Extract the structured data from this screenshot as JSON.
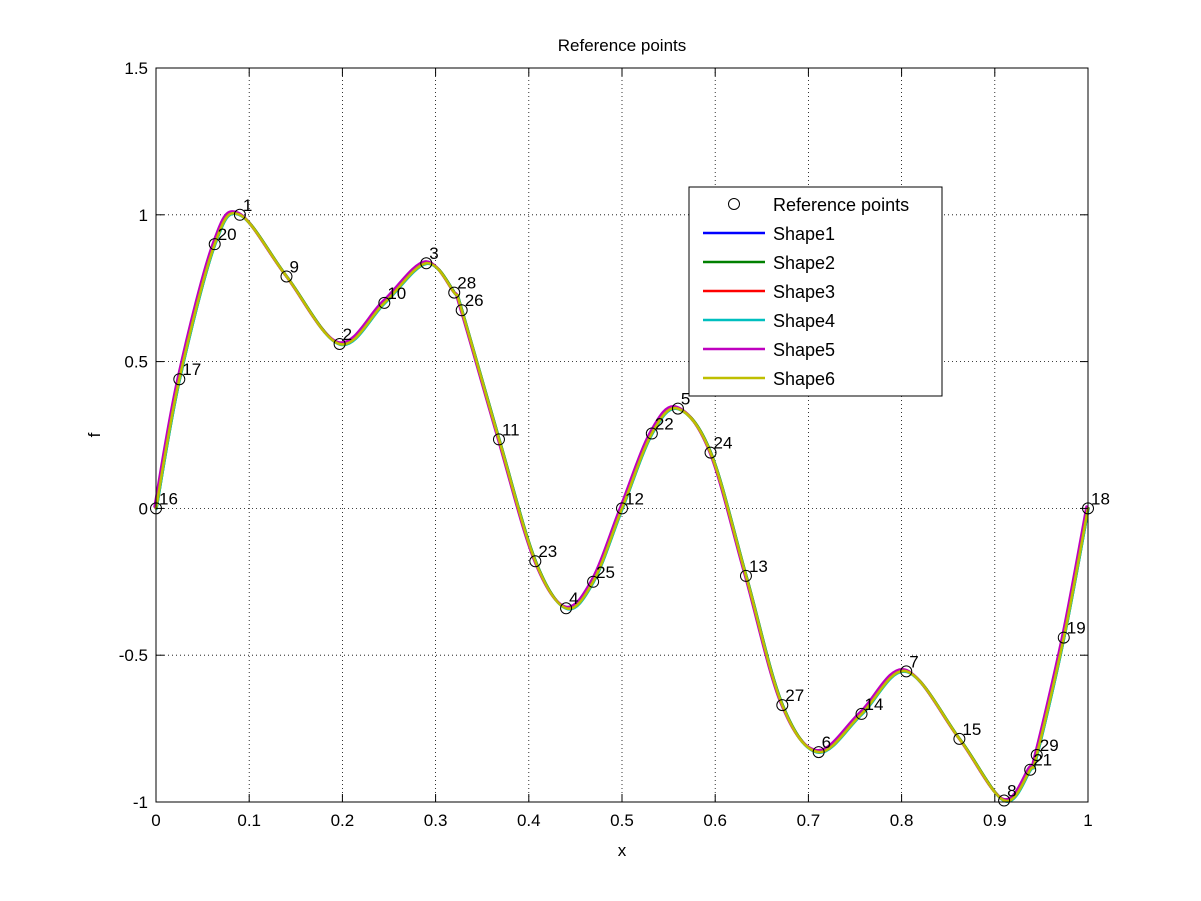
{
  "chart_data": {
    "type": "line",
    "title": "Reference points",
    "xlabel": "x",
    "ylabel": "f",
    "xlim": [
      0,
      1
    ],
    "ylim": [
      -1,
      1.5
    ],
    "xticks": [
      0,
      0.1,
      0.2,
      0.3,
      0.4,
      0.5,
      0.6,
      0.7,
      0.8,
      0.9,
      1
    ],
    "xtick_labels": [
      "0",
      "0.1",
      "0.2",
      "0.3",
      "0.4",
      "0.5",
      "0.6",
      "0.7",
      "0.8",
      "0.9",
      "1"
    ],
    "yticks": [
      -1,
      -0.5,
      0,
      0.5,
      1,
      1.5
    ],
    "ytick_labels": [
      "-1",
      "-0.5",
      "0",
      "0.5",
      "1",
      "1.5"
    ],
    "grid": true,
    "legend_position": "upper-right (inside axes)",
    "reference_points": {
      "name": "Reference points",
      "marker": "circle",
      "color": "#000000",
      "points": [
        {
          "label": "16",
          "x": 0.0,
          "y": 0.0
        },
        {
          "label": "17",
          "x": 0.025,
          "y": 0.44
        },
        {
          "label": "20",
          "x": 0.063,
          "y": 0.9
        },
        {
          "label": "1",
          "x": 0.09,
          "y": 1.0
        },
        {
          "label": "9",
          "x": 0.14,
          "y": 0.79
        },
        {
          "label": "2",
          "x": 0.197,
          "y": 0.56
        },
        {
          "label": "10",
          "x": 0.245,
          "y": 0.7
        },
        {
          "label": "3",
          "x": 0.29,
          "y": 0.835
        },
        {
          "label": "28",
          "x": 0.32,
          "y": 0.735
        },
        {
          "label": "26",
          "x": 0.328,
          "y": 0.675
        },
        {
          "label": "11",
          "x": 0.368,
          "y": 0.235
        },
        {
          "label": "23",
          "x": 0.407,
          "y": -0.18
        },
        {
          "label": "4",
          "x": 0.44,
          "y": -0.34
        },
        {
          "label": "25",
          "x": 0.469,
          "y": -0.25
        },
        {
          "label": "12",
          "x": 0.5,
          "y": 0.0
        },
        {
          "label": "22",
          "x": 0.532,
          "y": 0.255
        },
        {
          "label": "5",
          "x": 0.56,
          "y": 0.34
        },
        {
          "label": "24",
          "x": 0.595,
          "y": 0.19
        },
        {
          "label": "13",
          "x": 0.633,
          "y": -0.23
        },
        {
          "label": "27",
          "x": 0.672,
          "y": -0.67
        },
        {
          "label": "6",
          "x": 0.711,
          "y": -0.83
        },
        {
          "label": "14",
          "x": 0.757,
          "y": -0.7
        },
        {
          "label": "7",
          "x": 0.805,
          "y": -0.555
        },
        {
          "label": "15",
          "x": 0.862,
          "y": -0.785
        },
        {
          "label": "8",
          "x": 0.91,
          "y": -0.995
        },
        {
          "label": "21",
          "x": 0.938,
          "y": -0.89
        },
        {
          "label": "29",
          "x": 0.945,
          "y": -0.84
        },
        {
          "label": "19",
          "x": 0.974,
          "y": -0.44
        },
        {
          "label": "18",
          "x": 1.0,
          "y": 0.0
        }
      ]
    },
    "series": [
      {
        "name": "Shape1",
        "color": "#0000ff",
        "dx": 0.0,
        "dy": 0.0
      },
      {
        "name": "Shape2",
        "color": "#008000",
        "dx": 0.0005,
        "dy": 0.0
      },
      {
        "name": "Shape3",
        "color": "#ff0000",
        "dx": -0.0008,
        "dy": 0.003
      },
      {
        "name": "Shape4",
        "color": "#00bfbf",
        "dx": 0.0004,
        "dy": -0.002
      },
      {
        "name": "Shape5",
        "color": "#bf00bf",
        "dx": -0.0015,
        "dy": 0.006
      },
      {
        "name": "Shape6",
        "color": "#bfbf00",
        "dx": 0.0,
        "dy": 0.0
      }
    ]
  }
}
